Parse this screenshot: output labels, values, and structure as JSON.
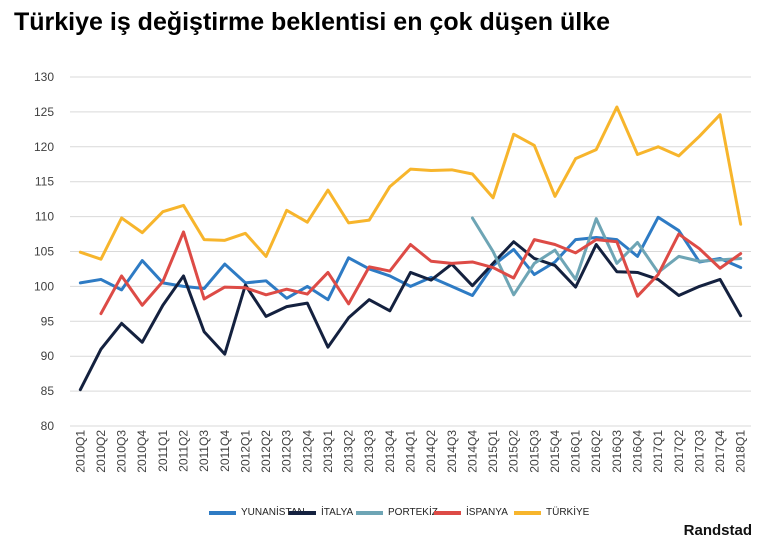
{
  "chart_data": {
    "type": "line",
    "title": "Türkiye iş değiştirme beklentisi en çok düşen ülke",
    "source": "Randstad",
    "xlabel": "",
    "ylabel": "",
    "ylim": [
      80,
      130
    ],
    "yticks": [
      "80",
      "85",
      "90",
      "95",
      "100",
      "105",
      "110",
      "115",
      "120",
      "125",
      "130"
    ],
    "grid": true,
    "categories": [
      "2010Q1",
      "2010Q2",
      "2010Q3",
      "2010Q4",
      "2011Q1",
      "2011Q2",
      "2011Q3",
      "2011Q4",
      "2012Q1",
      "2012Q2",
      "2012Q3",
      "2012Q4",
      "2013Q1",
      "2013Q2",
      "2013Q3",
      "2013Q4",
      "2014Q1",
      "2014Q2",
      "2014Q3",
      "2014Q4",
      "2015Q1",
      "2015Q2",
      "2015Q3",
      "2015Q4",
      "2016Q1",
      "2016Q2",
      "2016Q3",
      "2016Q4",
      "2017Q1",
      "2017Q2",
      "2017Q3",
      "2017Q4",
      "2018Q1"
    ],
    "series": [
      {
        "name": "YUNANİSTAN",
        "color": "#2e7bc4",
        "values": [
          100.5,
          101.0,
          99.5,
          103.7,
          100.5,
          100.0,
          99.7,
          103.2,
          100.5,
          100.8,
          98.3,
          100.0,
          98.1,
          104.1,
          102.5,
          101.5,
          100.0,
          101.3,
          100.0,
          98.7,
          103.0,
          105.3,
          101.7,
          103.5,
          106.7,
          107.0,
          106.7,
          104.3,
          109.9,
          108.0,
          103.5,
          104.0,
          102.7
        ]
      },
      {
        "name": "İTALYA",
        "color": "#14213f",
        "values": [
          85.2,
          91.0,
          94.7,
          92.0,
          97.3,
          101.5,
          93.5,
          90.3,
          100.2,
          95.7,
          97.1,
          97.6,
          91.3,
          95.5,
          98.1,
          96.5,
          102.0,
          100.9,
          103.2,
          100.1,
          103.3,
          106.4,
          104.0,
          103.0,
          99.9,
          106.0,
          102.1,
          102.0,
          101.0,
          98.7,
          100.0,
          101.0,
          95.8
        ]
      },
      {
        "name": "PORTEKİZ",
        "color": "#6ea5b5",
        "values": [
          null,
          null,
          null,
          null,
          null,
          null,
          null,
          null,
          null,
          null,
          null,
          null,
          null,
          null,
          null,
          null,
          null,
          null,
          null,
          109.8,
          105.0,
          98.8,
          103.3,
          105.2,
          101.0,
          109.7,
          103.3,
          106.3,
          102.0,
          104.3,
          103.6,
          103.8,
          104.0
        ]
      },
      {
        "name": "İSPANYA",
        "color": "#dd4b46",
        "values": [
          null,
          96.1,
          101.5,
          97.3,
          100.7,
          107.8,
          98.2,
          99.9,
          99.8,
          98.8,
          99.6,
          98.9,
          102.0,
          97.5,
          102.8,
          102.2,
          106.0,
          103.6,
          103.3,
          103.5,
          102.7,
          101.2,
          106.7,
          106.0,
          104.8,
          106.7,
          106.4,
          98.6,
          101.7,
          107.5,
          105.4,
          102.6,
          104.7
        ]
      },
      {
        "name": "TÜRKİYE",
        "color": "#f7b52c",
        "values": [
          104.9,
          103.9,
          109.8,
          107.7,
          110.7,
          111.6,
          106.7,
          106.6,
          107.6,
          104.3,
          110.9,
          109.2,
          113.8,
          109.1,
          109.5,
          114.3,
          116.8,
          116.6,
          116.7,
          116.1,
          112.7,
          121.8,
          120.2,
          112.9,
          118.3,
          119.6,
          125.7,
          118.9,
          120.0,
          118.7,
          121.5,
          124.6,
          108.9
        ]
      }
    ]
  }
}
